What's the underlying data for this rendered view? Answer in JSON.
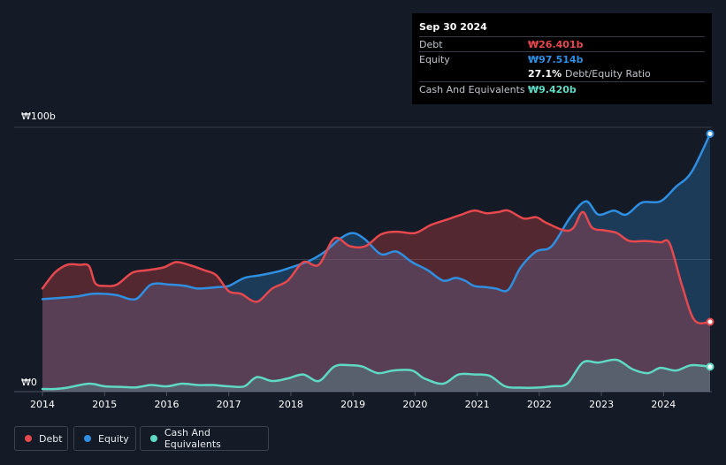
{
  "tooltip": {
    "date": "Sep 30 2024",
    "rows": [
      {
        "label": "Debt",
        "value": "₩26.401b"
      },
      {
        "label": "Equity",
        "value": "₩97.514b"
      },
      {
        "ratio_pct": "27.1%",
        "ratio_label": "Debt/Equity Ratio"
      },
      {
        "label": "Cash And Equivalents",
        "value": "₩9.420b"
      }
    ]
  },
  "legend": [
    {
      "label": "Debt",
      "color": "#e5484d"
    },
    {
      "label": "Equity",
      "color": "#2f8ee0"
    },
    {
      "label": "Cash And Equivalents",
      "color": "#5fd8c4"
    }
  ],
  "chart_data": {
    "type": "area",
    "y_unit": "₩ billions",
    "ylim": [
      0,
      100
    ],
    "y_tick_labels": [
      {
        "value": 100,
        "label": "₩100b"
      },
      {
        "value": 0,
        "label": "₩0"
      }
    ],
    "gridlines": [
      100,
      50,
      0
    ],
    "xlim": [
      2014,
      2024.75
    ],
    "x_ticks": [
      2014,
      2015,
      2016,
      2017,
      2018,
      2019,
      2020,
      2021,
      2022,
      2023,
      2024
    ],
    "x_tick_labels": [
      "2014",
      "2015",
      "2016",
      "2017",
      "2018",
      "2019",
      "2020",
      "2021",
      "2022",
      "2023",
      "2024"
    ],
    "series": [
      {
        "name": "Debt",
        "color": "#e5484d",
        "points": [
          [
            2014.0,
            39
          ],
          [
            2014.2,
            45
          ],
          [
            2014.4,
            48
          ],
          [
            2014.6,
            48
          ],
          [
            2014.75,
            47.5
          ],
          [
            2014.85,
            41
          ],
          [
            2015.0,
            40
          ],
          [
            2015.2,
            40.5
          ],
          [
            2015.45,
            45
          ],
          [
            2015.7,
            46
          ],
          [
            2015.95,
            47
          ],
          [
            2016.15,
            49
          ],
          [
            2016.35,
            48
          ],
          [
            2016.6,
            46
          ],
          [
            2016.8,
            44
          ],
          [
            2017.0,
            38
          ],
          [
            2017.2,
            37
          ],
          [
            2017.45,
            34
          ],
          [
            2017.7,
            39
          ],
          [
            2017.95,
            42
          ],
          [
            2018.2,
            49
          ],
          [
            2018.45,
            48
          ],
          [
            2018.7,
            58
          ],
          [
            2018.95,
            55
          ],
          [
            2019.2,
            55
          ],
          [
            2019.45,
            59.5
          ],
          [
            2019.7,
            60.5
          ],
          [
            2020.0,
            60
          ],
          [
            2020.25,
            63
          ],
          [
            2020.5,
            65
          ],
          [
            2020.75,
            67
          ],
          [
            2020.95,
            68.5
          ],
          [
            2021.15,
            67.5
          ],
          [
            2021.35,
            68
          ],
          [
            2021.5,
            68.5
          ],
          [
            2021.75,
            65.5
          ],
          [
            2021.95,
            66
          ],
          [
            2022.1,
            64
          ],
          [
            2022.4,
            61
          ],
          [
            2022.55,
            62
          ],
          [
            2022.7,
            68
          ],
          [
            2022.85,
            62
          ],
          [
            2023.05,
            61
          ],
          [
            2023.25,
            60
          ],
          [
            2023.45,
            57
          ],
          [
            2023.7,
            57
          ],
          [
            2023.95,
            56.5
          ],
          [
            2024.1,
            56
          ],
          [
            2024.3,
            40
          ],
          [
            2024.5,
            27
          ],
          [
            2024.75,
            26.401
          ]
        ]
      },
      {
        "name": "Equity",
        "color": "#2f8ee0",
        "points": [
          [
            2014.0,
            35
          ],
          [
            2014.3,
            35.5
          ],
          [
            2014.55,
            36
          ],
          [
            2014.8,
            37
          ],
          [
            2015.0,
            37
          ],
          [
            2015.2,
            36.5
          ],
          [
            2015.5,
            35
          ],
          [
            2015.75,
            40.5
          ],
          [
            2016.05,
            40.5
          ],
          [
            2016.3,
            40
          ],
          [
            2016.5,
            39
          ],
          [
            2016.8,
            39.5
          ],
          [
            2017.0,
            40
          ],
          [
            2017.25,
            43
          ],
          [
            2017.5,
            44
          ],
          [
            2017.8,
            45.5
          ],
          [
            2018.0,
            47
          ],
          [
            2018.3,
            49.5
          ],
          [
            2018.55,
            53
          ],
          [
            2018.8,
            58
          ],
          [
            2019.0,
            60
          ],
          [
            2019.2,
            57.5
          ],
          [
            2019.45,
            52
          ],
          [
            2019.7,
            53
          ],
          [
            2019.95,
            49
          ],
          [
            2020.2,
            46
          ],
          [
            2020.45,
            42
          ],
          [
            2020.65,
            43
          ],
          [
            2020.8,
            42
          ],
          [
            2020.95,
            40
          ],
          [
            2021.15,
            39.5
          ],
          [
            2021.3,
            39
          ],
          [
            2021.5,
            38.5
          ],
          [
            2021.7,
            47
          ],
          [
            2021.95,
            53
          ],
          [
            2022.2,
            55
          ],
          [
            2022.5,
            66
          ],
          [
            2022.75,
            72
          ],
          [
            2022.95,
            67
          ],
          [
            2023.2,
            68.5
          ],
          [
            2023.4,
            67
          ],
          [
            2023.65,
            71.5
          ],
          [
            2023.95,
            72
          ],
          [
            2024.2,
            77.5
          ],
          [
            2024.45,
            83
          ],
          [
            2024.75,
            97.514
          ]
        ]
      },
      {
        "name": "Cash And Equivalents",
        "color": "#5fd8c4",
        "points": [
          [
            2014.0,
            1
          ],
          [
            2014.2,
            1
          ],
          [
            2014.4,
            1.5
          ],
          [
            2014.75,
            3
          ],
          [
            2015.0,
            2
          ],
          [
            2015.25,
            1.8
          ],
          [
            2015.5,
            1.6
          ],
          [
            2015.75,
            2.5
          ],
          [
            2016.0,
            2
          ],
          [
            2016.25,
            3
          ],
          [
            2016.5,
            2.5
          ],
          [
            2016.75,
            2.5
          ],
          [
            2017.0,
            2
          ],
          [
            2017.25,
            2
          ],
          [
            2017.45,
            5.5
          ],
          [
            2017.7,
            4
          ],
          [
            2017.95,
            5
          ],
          [
            2018.2,
            6.5
          ],
          [
            2018.45,
            4
          ],
          [
            2018.7,
            9.5
          ],
          [
            2018.95,
            10
          ],
          [
            2019.15,
            9.5
          ],
          [
            2019.4,
            7
          ],
          [
            2019.65,
            8
          ],
          [
            2019.95,
            8
          ],
          [
            2020.15,
            5
          ],
          [
            2020.45,
            3
          ],
          [
            2020.7,
            6.5
          ],
          [
            2020.95,
            6.5
          ],
          [
            2021.2,
            6
          ],
          [
            2021.45,
            2
          ],
          [
            2021.7,
            1.5
          ],
          [
            2021.95,
            1.5
          ],
          [
            2022.2,
            2
          ],
          [
            2022.45,
            3
          ],
          [
            2022.7,
            11
          ],
          [
            2022.95,
            11
          ],
          [
            2023.25,
            12
          ],
          [
            2023.5,
            8.5
          ],
          [
            2023.75,
            7
          ],
          [
            2023.95,
            9
          ],
          [
            2024.2,
            8
          ],
          [
            2024.45,
            10
          ],
          [
            2024.75,
            9.42
          ]
        ]
      }
    ]
  }
}
